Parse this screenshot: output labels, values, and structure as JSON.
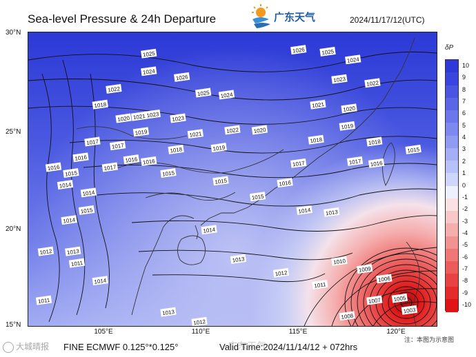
{
  "header": {
    "title": "Sea-level Pressure & 24h Departure",
    "logo_text": "广东天气",
    "datetime": "2024/11/17/12(UTC)"
  },
  "axes": {
    "lat_labels": [
      "30°N",
      "25°N",
      "20°N",
      "15°N"
    ],
    "lon_labels": [
      "105°E",
      "110°E",
      "115°E",
      "120°E"
    ]
  },
  "colorbar": {
    "title": "δP",
    "ticks": [
      "10",
      "9",
      "8",
      "7",
      "6",
      "5",
      "4",
      "3",
      "2",
      "1",
      "0",
      "-1",
      "-2",
      "-3",
      "-4",
      "-5",
      "-6",
      "-7",
      "-8",
      "-9",
      "-10"
    ],
    "colors": [
      "#2f39d8",
      "#3a45de",
      "#4a55e2",
      "#5a66e6",
      "#6b77ea",
      "#7d89ee",
      "#909cf2",
      "#a4aff5",
      "#b9c2f8",
      "#cfd6fb",
      "#eef0fd",
      "#fbe1e1",
      "#f8c8c8",
      "#f5aeae",
      "#f29393",
      "#ef7777",
      "#ec5c5c",
      "#e84242",
      "#e42a2a",
      "#e01414"
    ]
  },
  "isobar_labels": [
    {
      "text": "1025",
      "lon": 106.2,
      "lat": 28.9
    },
    {
      "text": "1024",
      "lon": 106.2,
      "lat": 28.0
    },
    {
      "text": "1026",
      "lon": 107.9,
      "lat": 27.7
    },
    {
      "text": "1025",
      "lon": 109.0,
      "lat": 26.9
    },
    {
      "text": "1024",
      "lon": 110.2,
      "lat": 26.8
    },
    {
      "text": "1023",
      "lon": 106.4,
      "lat": 25.8
    },
    {
      "text": "1023",
      "lon": 107.7,
      "lat": 25.6
    },
    {
      "text": "1021",
      "lon": 105.7,
      "lat": 25.7
    },
    {
      "text": "1020",
      "lon": 104.9,
      "lat": 25.6
    },
    {
      "text": "1022",
      "lon": 104.4,
      "lat": 27.1
    },
    {
      "text": "1018",
      "lon": 103.7,
      "lat": 26.3
    },
    {
      "text": "1019",
      "lon": 105.8,
      "lat": 24.9
    },
    {
      "text": "1021",
      "lon": 108.6,
      "lat": 24.8
    },
    {
      "text": "1022",
      "lon": 110.5,
      "lat": 25.0
    },
    {
      "text": "1020",
      "lon": 111.9,
      "lat": 25.0
    },
    {
      "text": "1019",
      "lon": 109.8,
      "lat": 24.1
    },
    {
      "text": "1018",
      "lon": 107.6,
      "lat": 24.0
    },
    {
      "text": "1017",
      "lon": 104.6,
      "lat": 24.2
    },
    {
      "text": "1017",
      "lon": 103.3,
      "lat": 24.4
    },
    {
      "text": "1016",
      "lon": 102.7,
      "lat": 23.6
    },
    {
      "text": "1016",
      "lon": 106.2,
      "lat": 23.4
    },
    {
      "text": "1017",
      "lon": 104.2,
      "lat": 23.1
    },
    {
      "text": "1016",
      "lon": 105.3,
      "lat": 23.5
    },
    {
      "text": "1015",
      "lon": 107.2,
      "lat": 22.8
    },
    {
      "text": "1014",
      "lon": 101.9,
      "lat": 22.2
    },
    {
      "text": "1016",
      "lon": 101.3,
      "lat": 23.1
    },
    {
      "text": "1015",
      "lon": 102.2,
      "lat": 22.8
    },
    {
      "text": "1014",
      "lon": 103.1,
      "lat": 21.8
    },
    {
      "text": "1015",
      "lon": 103.0,
      "lat": 20.9
    },
    {
      "text": "1014",
      "lon": 102.1,
      "lat": 20.4
    },
    {
      "text": "1013",
      "lon": 102.3,
      "lat": 18.8
    },
    {
      "text": "1012",
      "lon": 100.9,
      "lat": 18.8
    },
    {
      "text": "1011",
      "lon": 102.5,
      "lat": 18.2
    },
    {
      "text": "1014",
      "lon": 103.7,
      "lat": 17.3
    },
    {
      "text": "1011",
      "lon": 100.8,
      "lat": 16.3
    },
    {
      "text": "1015",
      "lon": 109.9,
      "lat": 22.4
    },
    {
      "text": "1016",
      "lon": 113.2,
      "lat": 22.3
    },
    {
      "text": "1015",
      "lon": 111.8,
      "lat": 21.6
    },
    {
      "text": "1014",
      "lon": 114.2,
      "lat": 20.9
    },
    {
      "text": "1013",
      "lon": 115.6,
      "lat": 20.8
    },
    {
      "text": "1014",
      "lon": 109.3,
      "lat": 19.9
    },
    {
      "text": "1013",
      "lon": 110.8,
      "lat": 18.4
    },
    {
      "text": "1012",
      "lon": 113.0,
      "lat": 17.7
    },
    {
      "text": "1011",
      "lon": 115.0,
      "lat": 17.1
    },
    {
      "text": "1013",
      "lon": 107.2,
      "lat": 15.7
    },
    {
      "text": "1012",
      "lon": 108.8,
      "lat": 15.2
    },
    {
      "text": "1017",
      "lon": 113.9,
      "lat": 23.3
    },
    {
      "text": "1017",
      "lon": 116.8,
      "lat": 23.4
    },
    {
      "text": "1016",
      "lon": 117.9,
      "lat": 23.3
    },
    {
      "text": "1018",
      "lon": 117.8,
      "lat": 24.4
    },
    {
      "text": "1018",
      "lon": 114.8,
      "lat": 24.5
    },
    {
      "text": "1019",
      "lon": 116.4,
      "lat": 25.2
    },
    {
      "text": "1021",
      "lon": 114.9,
      "lat": 26.3
    },
    {
      "text": "1020",
      "lon": 116.5,
      "lat": 26.1
    },
    {
      "text": "1023",
      "lon": 116.0,
      "lat": 27.6
    },
    {
      "text": "1022",
      "lon": 117.7,
      "lat": 27.4
    },
    {
      "text": "1024",
      "lon": 116.7,
      "lat": 28.6
    },
    {
      "text": "1025",
      "lon": 115.4,
      "lat": 29.0
    },
    {
      "text": "1026",
      "lon": 113.9,
      "lat": 29.1
    },
    {
      "text": "1015",
      "lon": 119.8,
      "lat": 24.0
    },
    {
      "text": "1010",
      "lon": 116.0,
      "lat": 18.3
    },
    {
      "text": "1009",
      "lon": 117.3,
      "lat": 17.9
    },
    {
      "text": "1008",
      "lon": 116.4,
      "lat": 15.5
    },
    {
      "text": "1007",
      "lon": 117.8,
      "lat": 16.3
    },
    {
      "text": "1006",
      "lon": 118.3,
      "lat": 17.4
    },
    {
      "text": "1005",
      "lon": 119.1,
      "lat": 16.4
    },
    {
      "text": "1003",
      "lon": 119.6,
      "lat": 15.8
    }
  ],
  "footer": {
    "model": "FINE ECMWF 0.125°*0.125°",
    "valid_time": "Valid Time:2024/11/14/12 + 072hrs",
    "note": "注：本图为示意图",
    "watermark": "大城晴报",
    "watermark2": "广东天气"
  }
}
